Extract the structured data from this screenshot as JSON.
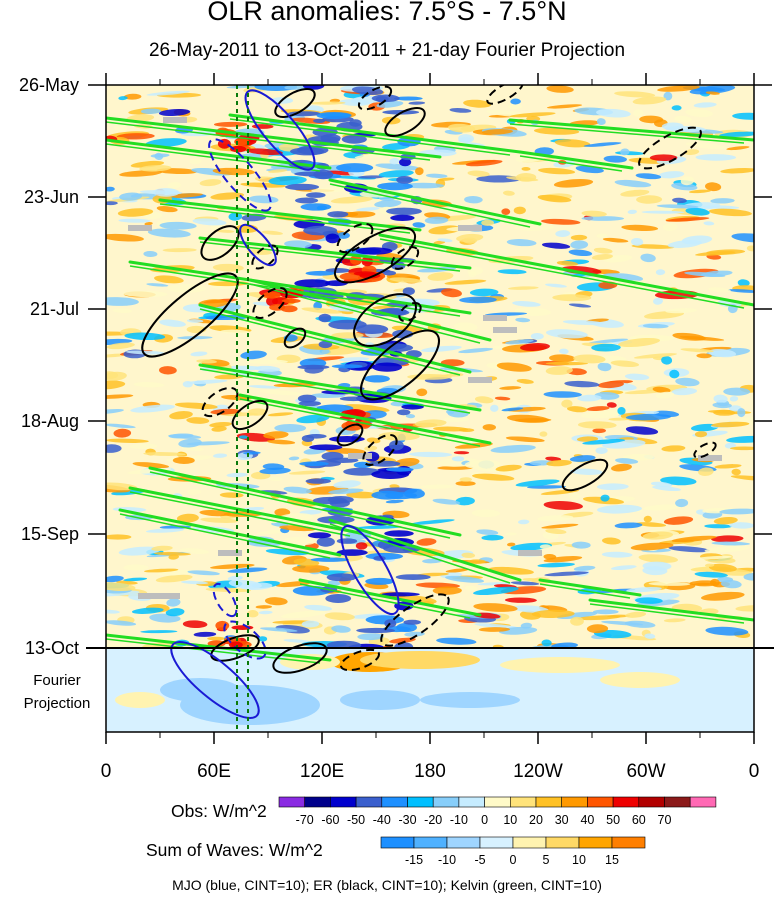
{
  "chart_data": {
    "type": "heatmap",
    "title": "OLR anomalies: 7.5°S - 7.5°N",
    "subtitle": "26-May-2011 to 13-Oct-2011 + 21-day Fourier Projection",
    "x_ticks": [
      "0",
      "60E",
      "120E",
      "180",
      "120W",
      "60W",
      "0"
    ],
    "y_ticks": [
      "26-May",
      "23-Jun",
      "21-Jul",
      "18-Aug",
      "15-Sep",
      "13-Oct"
    ],
    "projection_label": [
      "Fourier",
      "Projection"
    ],
    "obs_colorbar": {
      "label": "Obs: W/m^2",
      "levels": [
        "-70",
        "-60",
        "-50",
        "-40",
        "-30",
        "-20",
        "-10",
        "0",
        "10",
        "20",
        "30",
        "40",
        "50",
        "60",
        "70"
      ],
      "colors": [
        "#8a2be2",
        "#00008b",
        "#0000cd",
        "#3a5fcd",
        "#1e90ff",
        "#00bfff",
        "#87cefa",
        "#c6ecff",
        "#fffac8",
        "#ffe37a",
        "#ffc125",
        "#ff9900",
        "#ff5500",
        "#ee0000",
        "#b20000",
        "#8b1a1a",
        "#ff69b4"
      ]
    },
    "waves_colorbar": {
      "label": "Sum of Waves: W/m^2",
      "levels": [
        "-15",
        "-10",
        "-5",
        "0",
        "5",
        "10",
        "15"
      ],
      "colors": [
        "#1e90ff",
        "#4fb1ff",
        "#9fd5ff",
        "#d7f1ff",
        "#fff3b0",
        "#ffd966",
        "#ffa500",
        "#ff7f00"
      ]
    },
    "legend_note": "MJO (blue, CINT=10); ER (black, CINT=10); Kelvin (green, CINT=10)"
  }
}
